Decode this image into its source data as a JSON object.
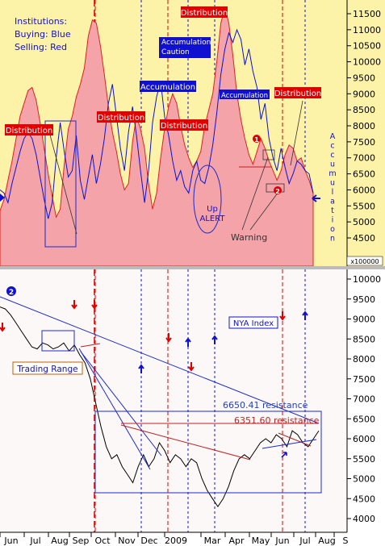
{
  "chart_data": [
    {
      "type": "area",
      "title": "",
      "notes": {
        "legend_title": "Institutions:",
        "legend_buying": "Buying: Blue",
        "legend_selling": "Selling: Red"
      },
      "y_ticks": [
        "11500",
        "11000",
        "10500",
        "10000",
        "9500",
        "9000",
        "8500",
        "8000",
        "7500",
        "7000",
        "6500",
        "6000",
        "5500",
        "5000",
        "4500"
      ],
      "y_ticks_values": [
        11500,
        11000,
        10500,
        10000,
        9500,
        9000,
        8500,
        8000,
        7500,
        7000,
        6500,
        6000,
        5500,
        5000,
        4500
      ],
      "ylim": [
        4450,
        11800
      ],
      "y_multiplier": "x100000",
      "colors": {
        "selling": "#f4a3a8",
        "selling_line": "#e02020",
        "buying": "#0a12d6",
        "top_bg": "#fdf3a8",
        "accent_red": "#e00000",
        "accent_blue": "#1010d0"
      },
      "series": [
        {
          "name": "Selling: Red",
          "values": [
            5350,
            5700,
            6300,
            6900,
            7600,
            8300,
            8700,
            9100,
            9200,
            8800,
            8100,
            7300,
            6500,
            5800,
            5150,
            5400,
            6800,
            7900,
            8300,
            8900,
            9300,
            9800,
            10800,
            11300,
            11200,
            10500,
            9600,
            8600,
            7800,
            7200,
            6500,
            6000,
            6200,
            7500,
            8300,
            7900,
            7300,
            6200,
            5400,
            5900,
            7000,
            7900,
            8600,
            9000,
            8700,
            8000,
            7400,
            7000,
            6700,
            6900,
            7200,
            8000,
            8500,
            9000,
            10000,
            11200,
            11700,
            11200,
            10200,
            9000,
            8200,
            7600,
            7100,
            6800,
            7200,
            7600,
            7300,
            6900,
            6600,
            6300,
            6600,
            7100,
            7400,
            7300,
            6900,
            7000,
            6600,
            6300,
            5900
          ]
        },
        {
          "name": "Buying: Blue",
          "values": [
            6000,
            5900,
            5600,
            6200,
            6700,
            7200,
            7600,
            7800,
            7600,
            7100,
            6400,
            5700,
            5100,
            5600,
            7000,
            8100,
            7200,
            6400,
            6600,
            7700,
            6300,
            5700,
            6400,
            7100,
            6200,
            6800,
            7600,
            8700,
            9300,
            8300,
            7300,
            6600,
            7800,
            8600,
            7700,
            6600,
            5600,
            6600,
            8100,
            8900,
            9400,
            8300,
            7700,
            6900,
            6300,
            6600,
            6100,
            5900,
            6600,
            6900,
            6300,
            6200,
            6700,
            7400,
            8400,
            9600,
            10400,
            10900,
            10600,
            11000,
            10700,
            9900,
            10400,
            9700,
            9200,
            8200,
            8700,
            7600,
            7000,
            6600,
            7300,
            6700,
            6200,
            6500,
            6900,
            6800,
            6600,
            6500,
            5900
          ]
        }
      ],
      "annotations": [
        {
          "text": "Distribution",
          "kind": "selling"
        },
        {
          "text": "Distribution",
          "kind": "selling"
        },
        {
          "text": "Distribution",
          "kind": "selling"
        },
        {
          "text": "Distribution",
          "kind": "selling"
        },
        {
          "text": "Distribution",
          "kind": "selling"
        },
        {
          "text": "Accumulation",
          "kind": "buying"
        },
        {
          "text": "Accumulation",
          "kind": "buying"
        },
        {
          "text": "Accumulation Caution",
          "kind": "buying"
        },
        {
          "text": "Up ALERT",
          "kind": "note"
        },
        {
          "text": "Warning",
          "kind": "note"
        },
        {
          "text": "Accumulation",
          "kind": "vertical"
        }
      ]
    },
    {
      "type": "line",
      "title": "NYA Index",
      "x_ticks": [
        "Jun",
        "Jul",
        "Aug",
        "Sep",
        "Oct",
        "Nov",
        "Dec",
        "2009",
        "Mar",
        "Apr",
        "May",
        "Jun",
        "Jul",
        "Aug",
        "S"
      ],
      "y_ticks": [
        "10000",
        "9500",
        "9000",
        "8500",
        "8000",
        "7500",
        "7000",
        "6500",
        "6000",
        "5500",
        "5000",
        "4500",
        "4000"
      ],
      "y_ticks_values": [
        10000,
        9500,
        9000,
        8500,
        8000,
        7500,
        7000,
        6500,
        6000,
        5500,
        5000,
        4500,
        4000
      ],
      "ylim": [
        3800,
        10150
      ],
      "series": [
        {
          "name": "NYA Index",
          "values": [
            9300,
            9250,
            9100,
            8900,
            8700,
            8500,
            8300,
            8250,
            8400,
            8350,
            8250,
            8300,
            8400,
            8200,
            8350,
            8100,
            7900,
            7500,
            6900,
            6300,
            5800,
            5500,
            5600,
            5300,
            5100,
            4900,
            5300,
            5600,
            5300,
            5500,
            5900,
            5700,
            5400,
            5600,
            5500,
            5300,
            5500,
            5400,
            5000,
            4700,
            4500,
            4300,
            4500,
            4800,
            5200,
            5500,
            5600,
            5500,
            5700,
            5900,
            6000,
            5900,
            6100,
            6000,
            5800,
            6200,
            6100,
            5900,
            5800,
            6000,
            6200
          ]
        }
      ],
      "annotations": [
        {
          "text": "Trading Range"
        },
        {
          "text": "6650.41 resistance"
        },
        {
          "text": "6351.60 resistance"
        }
      ]
    }
  ]
}
